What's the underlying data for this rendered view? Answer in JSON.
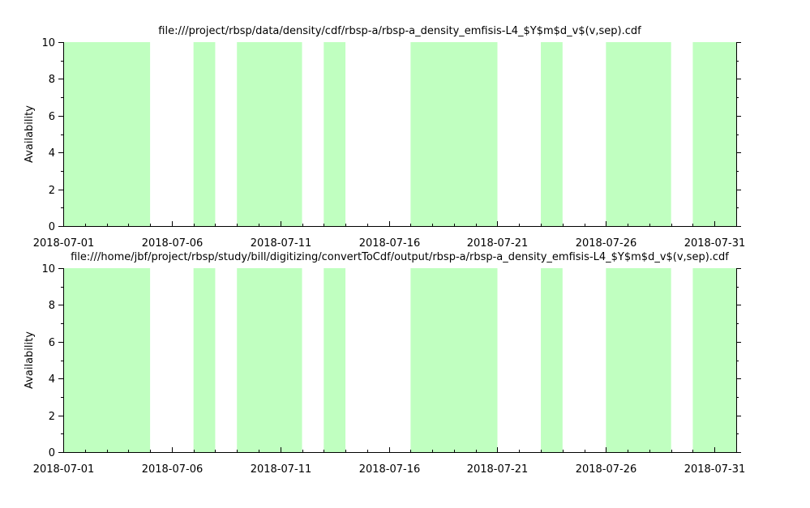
{
  "colors": {
    "fill": "#c0ffc0",
    "axis": "#000000",
    "background": "#ffffff"
  },
  "chart_data": [
    {
      "type": "bar",
      "title": "file:///project/rbsp/data/density/cdf/rbsp-a/rbsp-a_density_emfisis-L4_$Y$m$d_v$(v,sep).cdf",
      "xlabel": "",
      "ylabel": "Availability",
      "xlim": [
        "2018-07-01",
        "2018-08-01"
      ],
      "ylim": [
        0,
        10
      ],
      "xticks": [
        "2018-07-01",
        "2018-07-06",
        "2018-07-11",
        "2018-07-16",
        "2018-07-21",
        "2018-07-26",
        "2018-07-31"
      ],
      "yticks": [
        "0",
        "2",
        "4",
        "6",
        "8",
        "10"
      ],
      "intervals": [
        {
          "start": "2018-07-01",
          "end": "2018-07-05",
          "value": 10
        },
        {
          "start": "2018-07-07",
          "end": "2018-07-08",
          "value": 10
        },
        {
          "start": "2018-07-09",
          "end": "2018-07-12",
          "value": 10
        },
        {
          "start": "2018-07-13",
          "end": "2018-07-14",
          "value": 10
        },
        {
          "start": "2018-07-17",
          "end": "2018-07-21",
          "value": 10
        },
        {
          "start": "2018-07-23",
          "end": "2018-07-24",
          "value": 10
        },
        {
          "start": "2018-07-26",
          "end": "2018-07-29",
          "value": 10
        },
        {
          "start": "2018-07-30",
          "end": "2018-08-01",
          "value": 10
        }
      ]
    },
    {
      "type": "bar",
      "title": "file:///home/jbf/project/rbsp/study/bill/digitizing/convertToCdf/output/rbsp-a/rbsp-a_density_emfisis-L4_$Y$m$d_v$(v,sep).cdf",
      "xlabel": "",
      "ylabel": "Availability",
      "xlim": [
        "2018-07-01",
        "2018-08-01"
      ],
      "ylim": [
        0,
        10
      ],
      "xticks": [
        "2018-07-01",
        "2018-07-06",
        "2018-07-11",
        "2018-07-16",
        "2018-07-21",
        "2018-07-26",
        "2018-07-31"
      ],
      "yticks": [
        "0",
        "2",
        "4",
        "6",
        "8",
        "10"
      ],
      "intervals": [
        {
          "start": "2018-07-01",
          "end": "2018-07-05",
          "value": 10
        },
        {
          "start": "2018-07-07",
          "end": "2018-07-08",
          "value": 10
        },
        {
          "start": "2018-07-09",
          "end": "2018-07-12",
          "value": 10
        },
        {
          "start": "2018-07-13",
          "end": "2018-07-14",
          "value": 10
        },
        {
          "start": "2018-07-17",
          "end": "2018-07-21",
          "value": 10
        },
        {
          "start": "2018-07-23",
          "end": "2018-07-24",
          "value": 10
        },
        {
          "start": "2018-07-26",
          "end": "2018-07-29",
          "value": 10
        },
        {
          "start": "2018-07-30",
          "end": "2018-08-01",
          "value": 10
        }
      ]
    }
  ]
}
